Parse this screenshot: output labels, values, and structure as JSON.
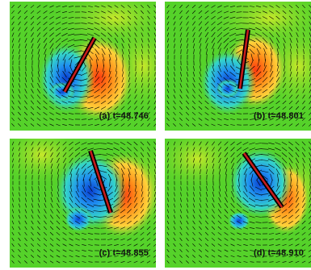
{
  "panels": [
    {
      "label": "(a) t=48.746"
    },
    {
      "label": "(b) t=48.801"
    },
    {
      "label": "(c) t=48.855"
    },
    {
      "label": "(d) t=48.910"
    }
  ],
  "colors": {
    "background_field": "#55d22a",
    "field_light": "#b7e62b",
    "positive_region": "#ff4a10",
    "negative_region": "#1a74e8",
    "body": "#c81c1c",
    "vectors": "#000000",
    "gap": "#ffffff"
  }
}
